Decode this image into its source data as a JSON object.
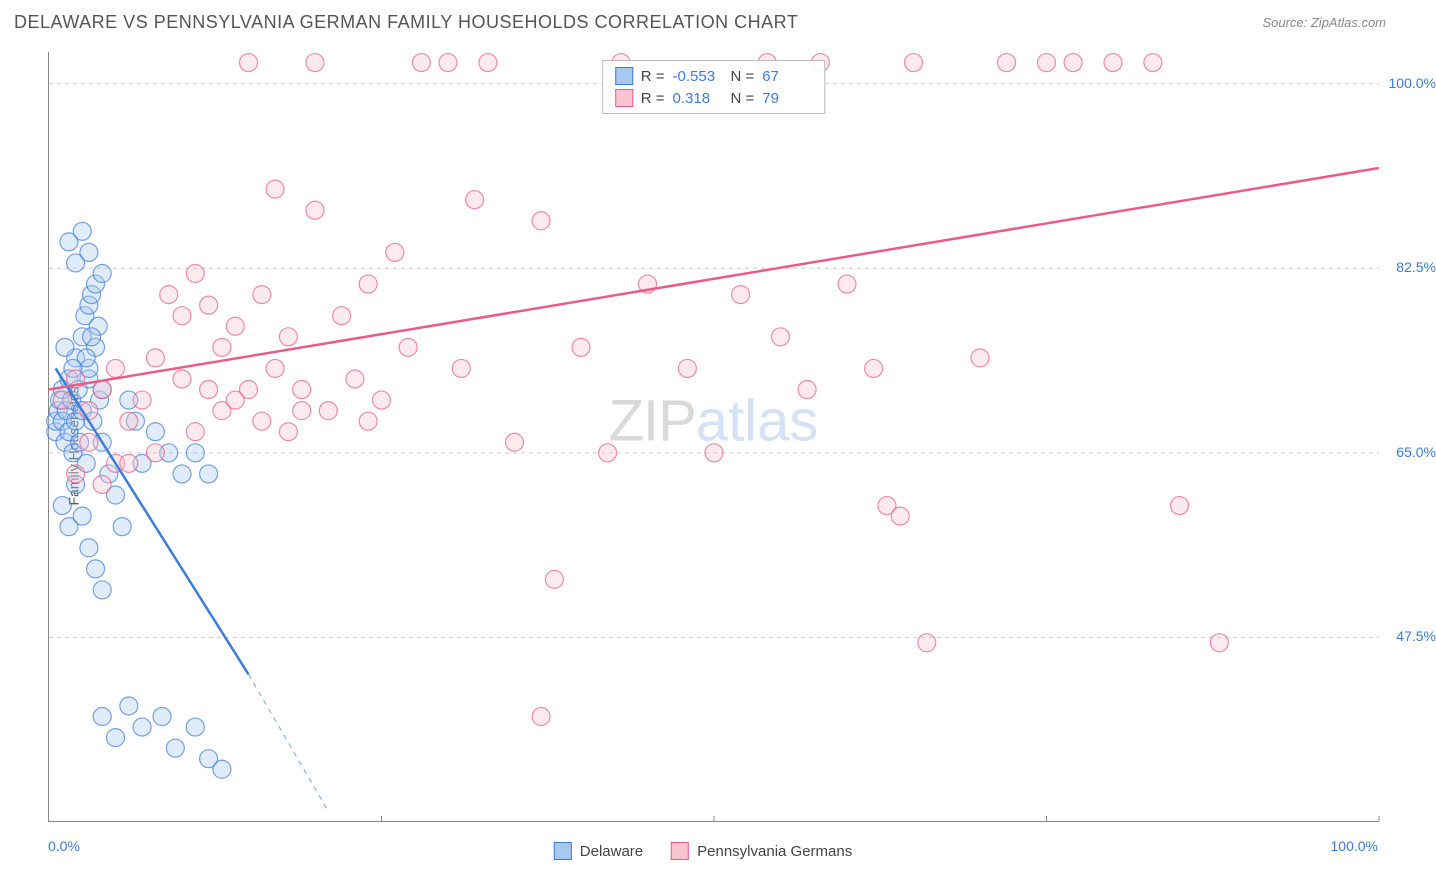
{
  "header": {
    "title": "DELAWARE VS PENNSYLVANIA GERMAN FAMILY HOUSEHOLDS CORRELATION CHART",
    "source": "Source: ZipAtlas.com"
  },
  "axes": {
    "y_label": "Family Households",
    "x_min_label": "0.0%",
    "x_max_label": "100.0%",
    "y_ticks": [
      {
        "label": "47.5%",
        "value": 47.5
      },
      {
        "label": "65.0%",
        "value": 65.0
      },
      {
        "label": "82.5%",
        "value": 82.5
      },
      {
        "label": "100.0%",
        "value": 100.0
      }
    ],
    "x_major_ticks": [
      0,
      25,
      50,
      75,
      100
    ],
    "xlim": [
      0,
      100
    ],
    "ylim": [
      30,
      103
    ],
    "grid_color": "#cccccc",
    "axis_color": "#888888",
    "tick_label_color": "#3b7dd8"
  },
  "stats": {
    "series1": {
      "swatch_fill": "#a8c8f0",
      "swatch_border": "#3b7dd8",
      "r_label": "R =",
      "r": "-0.553",
      "n_label": "N =",
      "n": "67"
    },
    "series2": {
      "swatch_fill": "#f7c4cf",
      "swatch_border": "#e85d87",
      "r_label": "R =",
      "r": "0.318",
      "n_label": "N =",
      "n": "79"
    }
  },
  "legend": {
    "series1": {
      "label": "Delaware",
      "swatch_fill": "#a8c8f0",
      "swatch_border": "#3b7dd8"
    },
    "series2": {
      "label": "Pennsylvania Germans",
      "swatch_fill": "#f7c4cf",
      "swatch_border": "#e85d87"
    }
  },
  "watermark": {
    "part1": "ZIP",
    "part2": "atlas"
  },
  "chart": {
    "type": "scatter",
    "marker_radius": 9,
    "marker_fill_opacity": 0.35,
    "marker_stroke_opacity": 0.7,
    "marker_stroke_width": 1.2,
    "series": [
      {
        "name": "Delaware",
        "color": "#3b7dd8",
        "fill": "#a8c8f0",
        "trend": {
          "x1": 0.5,
          "y1": 73,
          "x2": 15,
          "y2": 44,
          "dash_extend_x": 21,
          "dash_extend_y": 31,
          "width": 2.5
        },
        "points": [
          [
            0.5,
            67
          ],
          [
            0.5,
            68
          ],
          [
            0.7,
            69
          ],
          [
            0.8,
            70
          ],
          [
            1,
            71
          ],
          [
            1,
            68
          ],
          [
            1.2,
            66
          ],
          [
            1.3,
            69
          ],
          [
            1.5,
            72
          ],
          [
            1.5,
            67
          ],
          [
            1.7,
            70
          ],
          [
            1.8,
            65
          ],
          [
            2,
            68
          ],
          [
            2,
            74
          ],
          [
            2.2,
            71
          ],
          [
            2.3,
            66
          ],
          [
            2.5,
            69
          ],
          [
            2.5,
            76
          ],
          [
            2.7,
            78
          ],
          [
            2.8,
            64
          ],
          [
            3,
            79
          ],
          [
            3,
            72
          ],
          [
            3.2,
            80
          ],
          [
            3.3,
            68
          ],
          [
            3.5,
            75
          ],
          [
            3.5,
            81
          ],
          [
            3.7,
            77
          ],
          [
            3.8,
            70
          ],
          [
            4,
            82
          ],
          [
            4,
            66
          ],
          [
            1.5,
            85
          ],
          [
            2,
            83
          ],
          [
            2.5,
            86
          ],
          [
            3,
            84
          ],
          [
            1,
            60
          ],
          [
            1.5,
            58
          ],
          [
            2,
            62
          ],
          [
            2.5,
            59
          ],
          [
            3,
            56
          ],
          [
            3.5,
            54
          ],
          [
            4,
            52
          ],
          [
            4.5,
            63
          ],
          [
            5,
            61
          ],
          [
            5.5,
            58
          ],
          [
            6,
            70
          ],
          [
            6.5,
            68
          ],
          [
            7,
            64
          ],
          [
            8,
            67
          ],
          [
            9,
            65
          ],
          [
            10,
            63
          ],
          [
            4,
            40
          ],
          [
            5,
            38
          ],
          [
            6,
            41
          ],
          [
            7,
            39
          ],
          [
            8.5,
            40
          ],
          [
            9.5,
            37
          ],
          [
            11,
            39
          ],
          [
            12,
            36
          ],
          [
            13,
            35
          ],
          [
            11,
            65
          ],
          [
            12,
            63
          ],
          [
            3,
            73
          ],
          [
            4,
            71
          ],
          [
            2.8,
            74
          ],
          [
            3.2,
            76
          ],
          [
            1.8,
            73
          ],
          [
            1.2,
            75
          ]
        ]
      },
      {
        "name": "Pennsylvania Germans",
        "color": "#e85d87",
        "fill": "#f7c4cf",
        "trend": {
          "x1": 0,
          "y1": 71,
          "x2": 100,
          "y2": 92,
          "width": 2.5
        },
        "points": [
          [
            1,
            70
          ],
          [
            2,
            72
          ],
          [
            3,
            69
          ],
          [
            4,
            71
          ],
          [
            5,
            73
          ],
          [
            6,
            68
          ],
          [
            7,
            70
          ],
          [
            8,
            74
          ],
          [
            9,
            80
          ],
          [
            10,
            78
          ],
          [
            10,
            72
          ],
          [
            11,
            82
          ],
          [
            12,
            79
          ],
          [
            13,
            75
          ],
          [
            14,
            77
          ],
          [
            15,
            71
          ],
          [
            16,
            80
          ],
          [
            17,
            73
          ],
          [
            18,
            76
          ],
          [
            19,
            69
          ],
          [
            17,
            90
          ],
          [
            20,
            88
          ],
          [
            22,
            78
          ],
          [
            23,
            72
          ],
          [
            24,
            81
          ],
          [
            25,
            70
          ],
          [
            26,
            84
          ],
          [
            27,
            75
          ],
          [
            28,
            102
          ],
          [
            30,
            102
          ],
          [
            31,
            73
          ],
          [
            32,
            89
          ],
          [
            33,
            102
          ],
          [
            35,
            66
          ],
          [
            37,
            87
          ],
          [
            38,
            53
          ],
          [
            40,
            75
          ],
          [
            42,
            65
          ],
          [
            43,
            102
          ],
          [
            45,
            81
          ],
          [
            37,
            40
          ],
          [
            48,
            73
          ],
          [
            50,
            65
          ],
          [
            52,
            80
          ],
          [
            54,
            102
          ],
          [
            55,
            76
          ],
          [
            57,
            71
          ],
          [
            58,
            102
          ],
          [
            60,
            81
          ],
          [
            62,
            73
          ],
          [
            63,
            60
          ],
          [
            64,
            59
          ],
          [
            65,
            102
          ],
          [
            66,
            47
          ],
          [
            70,
            74
          ],
          [
            72,
            102
          ],
          [
            75,
            102
          ],
          [
            77,
            102
          ],
          [
            80,
            102
          ],
          [
            83,
            102
          ],
          [
            85,
            60
          ],
          [
            88,
            47
          ],
          [
            15,
            102
          ],
          [
            20,
            102
          ],
          [
            5,
            64
          ],
          [
            8,
            65
          ],
          [
            4,
            62
          ],
          [
            6,
            64
          ],
          [
            3,
            66
          ],
          [
            2,
            63
          ],
          [
            11,
            67
          ],
          [
            13,
            69
          ],
          [
            14,
            70
          ],
          [
            16,
            68
          ],
          [
            18,
            67
          ],
          [
            21,
            69
          ],
          [
            19,
            71
          ],
          [
            24,
            68
          ],
          [
            12,
            71
          ]
        ]
      }
    ]
  },
  "colors": {
    "background": "#ffffff",
    "title_color": "#555555",
    "source_color": "#888888"
  }
}
